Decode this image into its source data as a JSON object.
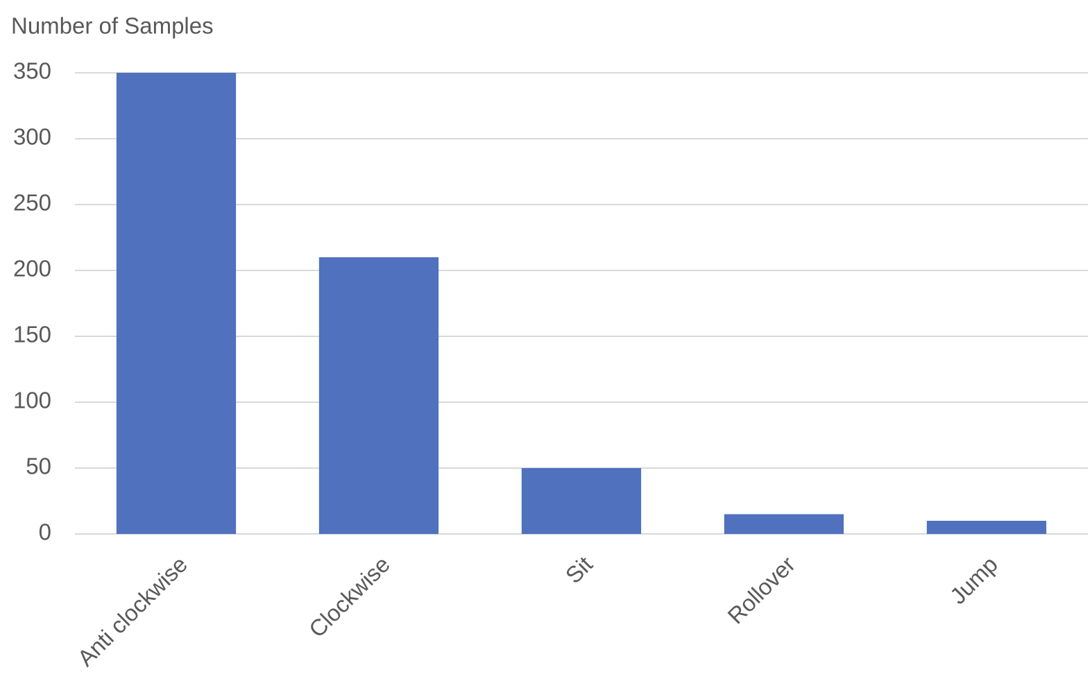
{
  "chart_data": {
    "type": "bar",
    "y_label": "Number of Samples",
    "categories": [
      "Anti clockwise",
      "Clockwise",
      "Sit",
      "Rollover",
      "Jump"
    ],
    "values": [
      350,
      210,
      50,
      15,
      10
    ],
    "color": "#4f71be",
    "ylim": [
      0,
      350
    ],
    "yticks": [
      0,
      50,
      100,
      150,
      200,
      250,
      300,
      350
    ],
    "grid": true
  }
}
